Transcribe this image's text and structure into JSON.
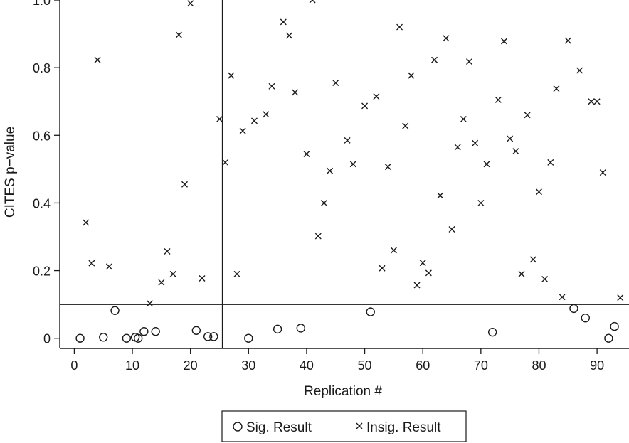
{
  "chart_data": {
    "type": "scatter",
    "xlabel": "Replication #",
    "ylabel": "CITES p−value",
    "xlim": [
      -2.5,
      95.5
    ],
    "ylim": [
      -0.03,
      1.0
    ],
    "x_ticks": [
      0,
      10,
      20,
      30,
      40,
      50,
      60,
      70,
      80,
      90
    ],
    "x_tick_labels": [
      "0",
      "10",
      "20",
      "30",
      "40",
      "50",
      "60",
      "70",
      "80",
      "90"
    ],
    "y_ticks": [
      0,
      0.2,
      0.4,
      0.6,
      0.8,
      1.0
    ],
    "y_tick_labels": [
      "0",
      "0.2",
      "0.4",
      "0.6",
      "0.8",
      "1.0"
    ],
    "reference_lines": {
      "vertical_x": 25.5,
      "horizontal_y": 0.1
    },
    "grid": false,
    "legend_position": "bottom",
    "series": [
      {
        "name": "Sig. Result",
        "marker": "circle",
        "points": [
          [
            1,
            0.0
          ],
          [
            5,
            0.003
          ],
          [
            7,
            0.082
          ],
          [
            9,
            0.0
          ],
          [
            10.5,
            0.003
          ],
          [
            11,
            0.0
          ],
          [
            12,
            0.02
          ],
          [
            14,
            0.02
          ],
          [
            21,
            0.023
          ],
          [
            23,
            0.005
          ],
          [
            24,
            0.005
          ],
          [
            30,
            0.0
          ],
          [
            35,
            0.027
          ],
          [
            39,
            0.03
          ],
          [
            51,
            0.078
          ],
          [
            72,
            0.018
          ],
          [
            86,
            0.088
          ],
          [
            88,
            0.06
          ],
          [
            92,
            0.0
          ],
          [
            93,
            0.035
          ]
        ]
      },
      {
        "name": "Insig. Result",
        "marker": "x",
        "points": [
          [
            2,
            0.342
          ],
          [
            3,
            0.222
          ],
          [
            4,
            0.823
          ],
          [
            6,
            0.212
          ],
          [
            13,
            0.103
          ],
          [
            15,
            0.165
          ],
          [
            16,
            0.257
          ],
          [
            17,
            0.19
          ],
          [
            18,
            0.897
          ],
          [
            19,
            0.455
          ],
          [
            20,
            0.99
          ],
          [
            22,
            0.177
          ],
          [
            25,
            0.648
          ],
          [
            26,
            0.52
          ],
          [
            27,
            0.777
          ],
          [
            28,
            0.19
          ],
          [
            29,
            0.613
          ],
          [
            31,
            0.643
          ],
          [
            33,
            0.662
          ],
          [
            34,
            0.745
          ],
          [
            36,
            0.935
          ],
          [
            37,
            0.895
          ],
          [
            38,
            0.727
          ],
          [
            40,
            0.545
          ],
          [
            41,
            1.0
          ],
          [
            42,
            0.302
          ],
          [
            43,
            0.4
          ],
          [
            44,
            0.495
          ],
          [
            45,
            0.755
          ],
          [
            47,
            0.585
          ],
          [
            48,
            0.515
          ],
          [
            50,
            0.687
          ],
          [
            52,
            0.715
          ],
          [
            53,
            0.207
          ],
          [
            54,
            0.507
          ],
          [
            55,
            0.26
          ],
          [
            56,
            0.92
          ],
          [
            57,
            0.628
          ],
          [
            58,
            0.777
          ],
          [
            59,
            0.157
          ],
          [
            60,
            0.223
          ],
          [
            61,
            0.193
          ],
          [
            62,
            0.823
          ],
          [
            63,
            0.422
          ],
          [
            64,
            0.887
          ],
          [
            65,
            0.322
          ],
          [
            66,
            0.565
          ],
          [
            67,
            0.648
          ],
          [
            68,
            0.818
          ],
          [
            69,
            0.577
          ],
          [
            70,
            0.4
          ],
          [
            71,
            0.515
          ],
          [
            73,
            0.705
          ],
          [
            74,
            0.878
          ],
          [
            75,
            0.59
          ],
          [
            76,
            0.553
          ],
          [
            77,
            0.19
          ],
          [
            78,
            0.66
          ],
          [
            79,
            0.233
          ],
          [
            80,
            0.433
          ],
          [
            81,
            0.175
          ],
          [
            82,
            0.52
          ],
          [
            83,
            0.738
          ],
          [
            84,
            0.122
          ],
          [
            85,
            0.88
          ],
          [
            87,
            0.792
          ],
          [
            89,
            0.7
          ],
          [
            90,
            0.7
          ],
          [
            91,
            0.49
          ],
          [
            94,
            0.12
          ]
        ]
      }
    ]
  }
}
